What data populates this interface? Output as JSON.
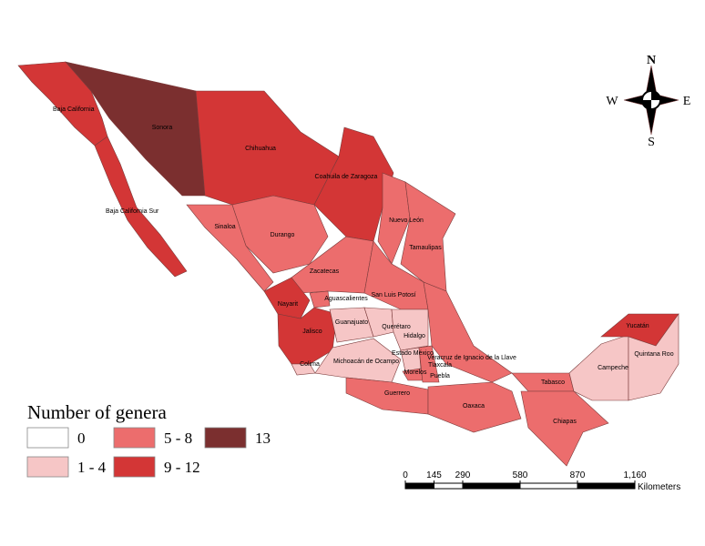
{
  "legend": {
    "title": "Number of genera",
    "items": [
      {
        "label": "0",
        "color": "#ffffff"
      },
      {
        "label": "1 - 4",
        "color": "#f6c6c6"
      },
      {
        "label": "5 - 8",
        "color": "#ec6d6d"
      },
      {
        "label": "9 - 12",
        "color": "#d33636"
      },
      {
        "label": "13",
        "color": "#7b2f2f"
      }
    ]
  },
  "states": [
    {
      "name": "Baja California",
      "color": "#d33636"
    },
    {
      "name": "Baja California Sur",
      "color": "#d33636"
    },
    {
      "name": "Sonora",
      "color": "#7b2f2f"
    },
    {
      "name": "Chihuahua",
      "color": "#d33636"
    },
    {
      "name": "Coahuila de Zaragoza",
      "color": "#d33636"
    },
    {
      "name": "Nuevo León",
      "color": "#ec6d6d"
    },
    {
      "name": "Tamaulipas",
      "color": "#ec6d6d"
    },
    {
      "name": "Sinaloa",
      "color": "#ec6d6d"
    },
    {
      "name": "Durango",
      "color": "#ec6d6d"
    },
    {
      "name": "Zacatecas",
      "color": "#ec6d6d"
    },
    {
      "name": "San Luis Potosí",
      "color": "#ec6d6d"
    },
    {
      "name": "Nayarit",
      "color": "#d33636"
    },
    {
      "name": "Aguascalientes",
      "color": "#ec6d6d"
    },
    {
      "name": "Jalisco",
      "color": "#d33636"
    },
    {
      "name": "Colima",
      "color": "#f6c6c6"
    },
    {
      "name": "Guanajuato",
      "color": "#f6c6c6"
    },
    {
      "name": "Querétaro",
      "color": "#f6c6c6"
    },
    {
      "name": "Hidalgo",
      "color": "#f6c6c6"
    },
    {
      "name": "Michoacán de Ocampo",
      "color": "#f6c6c6"
    },
    {
      "name": "Estado México",
      "color": "#f6c6c6"
    },
    {
      "name": "Tlaxcala",
      "color": "#ffffff"
    },
    {
      "name": "Morelos",
      "color": "#ec6d6d"
    },
    {
      "name": "Puebla",
      "color": "#ec6d6d"
    },
    {
      "name": "Veracruz de Ignacio de la Llave",
      "color": "#ec6d6d"
    },
    {
      "name": "Guerrero",
      "color": "#ec6d6d"
    },
    {
      "name": "Oaxaca",
      "color": "#ec6d6d"
    },
    {
      "name": "Tabasco",
      "color": "#ec6d6d"
    },
    {
      "name": "Chiapas",
      "color": "#ec6d6d"
    },
    {
      "name": "Campeche",
      "color": "#f6c6c6"
    },
    {
      "name": "Yucatán",
      "color": "#d33636"
    },
    {
      "name": "Quintana Roo",
      "color": "#f6c6c6"
    }
  ],
  "compass": {
    "north": "N",
    "south": "S",
    "east": "E",
    "west": "W"
  },
  "scale": {
    "ticks": [
      0,
      145,
      290,
      580,
      870,
      {
        "value": 1160,
        "label": "1,160"
      }
    ],
    "unit": "Kilometers"
  }
}
